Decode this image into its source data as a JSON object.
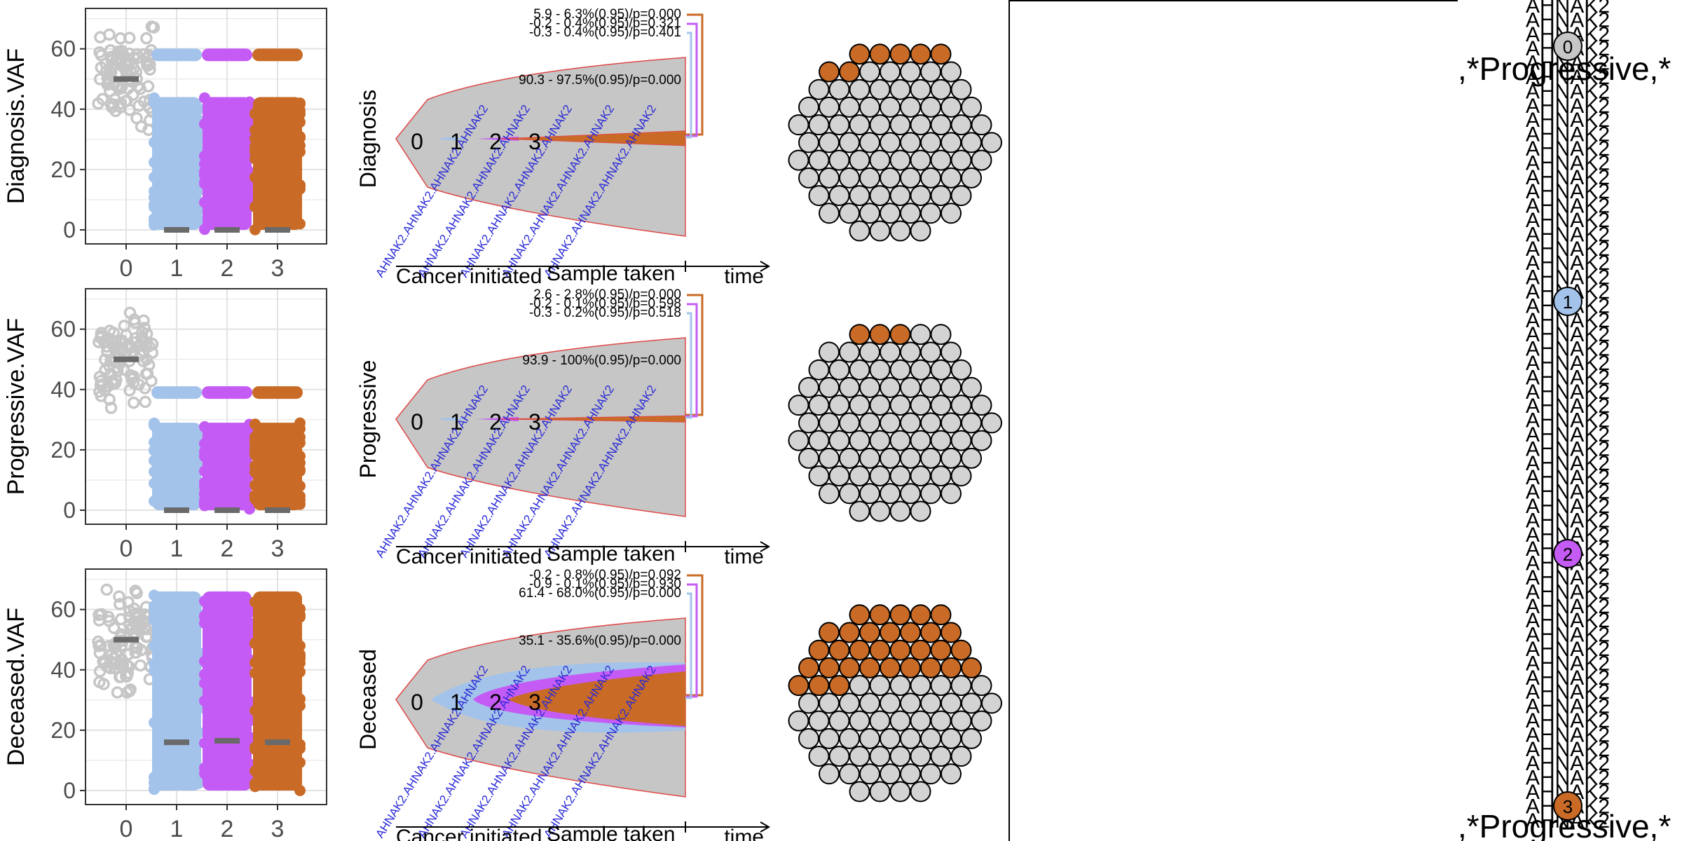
{
  "chart_data": [
    {
      "type": "scatter",
      "panel": "Diagnosis",
      "ylabel": "Diagnosis.VAF",
      "categories": [
        "0",
        "1",
        "2",
        "3"
      ],
      "yticks": [
        0,
        20,
        40,
        60
      ],
      "ylim": [
        0,
        72
      ],
      "median": [
        50,
        0,
        0,
        0
      ],
      "bands": [
        {
          "cluster": "1",
          "low": 0,
          "high": 44
        },
        {
          "cluster": "2",
          "low": 0,
          "high": 44
        },
        {
          "cluster": "3",
          "low": 0,
          "high": 44
        }
      ],
      "top_values": [
        58,
        58,
        58
      ]
    },
    {
      "type": "scatter",
      "panel": "Progressive",
      "ylabel": "Progressive.VAF",
      "categories": [
        "0",
        "1",
        "2",
        "3"
      ],
      "yticks": [
        0,
        20,
        40,
        60
      ],
      "ylim": [
        0,
        72
      ],
      "median": [
        50,
        0,
        0,
        0
      ],
      "bands": [
        {
          "cluster": "1",
          "low": 0,
          "high": 29
        },
        {
          "cluster": "2",
          "low": 0,
          "high": 29
        },
        {
          "cluster": "3",
          "low": 0,
          "high": 29
        }
      ],
      "top_values": [
        39,
        39,
        39
      ]
    },
    {
      "type": "scatter",
      "panel": "Deceased",
      "ylabel": "Deceased.VAF",
      "categories": [
        "0",
        "1",
        "2",
        "3"
      ],
      "yticks": [
        0,
        20,
        40,
        60
      ],
      "ylim": [
        0,
        72
      ],
      "median": [
        50,
        16,
        16.5,
        16
      ],
      "bands": [
        {
          "cluster": "1",
          "low": 0,
          "high": 66
        },
        {
          "cluster": "2",
          "low": 0,
          "high": 66
        },
        {
          "cluster": "3",
          "low": 0,
          "high": 66
        }
      ],
      "top_values": []
    }
  ],
  "fish": [
    {
      "sample": "Diagnosis",
      "nodes": [
        "0",
        "1",
        "2",
        "3"
      ],
      "ci": [
        "5.9 - 6.3%(0.95)/p=0.000",
        "-0.2 - 0.4%(0.95)/p=0.321",
        "-0.3 - 0.4%(0.95)/p=0.401",
        "90.3 - 97.5%(0.95)/p=0.000"
      ],
      "x_start": "Cancer initiated",
      "x_end": "Sample taken",
      "x_axis": "time",
      "cell_fraction_3": 7
    },
    {
      "sample": "Progressive",
      "nodes": [
        "0",
        "1",
        "2",
        "3"
      ],
      "ci": [
        "2.6 - 2.8%(0.95)/p=0.000",
        "-0.2 - 0.1%(0.95)/p=0.598",
        "-0.3 - 0.2%(0.95)/p=0.518",
        "93.9 - 100%(0.95)/p=0.000"
      ],
      "x_start": "Cancer initiated",
      "x_end": "Sample taken",
      "x_axis": "time",
      "cell_fraction_3": 3
    },
    {
      "sample": "Deceased",
      "nodes": [
        "0",
        "1",
        "2",
        "3"
      ],
      "ci": [
        "-0.2 - 0.8%(0.95)/p=0.092",
        "-0.9 - 0.1%(0.95)/p=0.930",
        "61.4 - 68.0%(0.95)/p=0.000",
        "35.1 - 35.6%(0.95)/p=0.000"
      ],
      "x_start": "Cancer initiated",
      "x_end": "Sample taken",
      "x_axis": "time",
      "cell_fraction_3": 32
    }
  ],
  "gene_label": "AHNAK2",
  "tree_label": ",*Progressive,*",
  "tree_nodes": [
    "0",
    "1",
    "2",
    "3"
  ],
  "colors": {
    "c0": "#c6c6c6",
    "c1": "#a3c3ea",
    "c2": "#c55bf5",
    "c3": "#c96b26",
    "median": "#6a6a6a",
    "grid": "#e3e3e3",
    "fish_outline": "#e04848",
    "annotation": "#2a2ad6"
  }
}
